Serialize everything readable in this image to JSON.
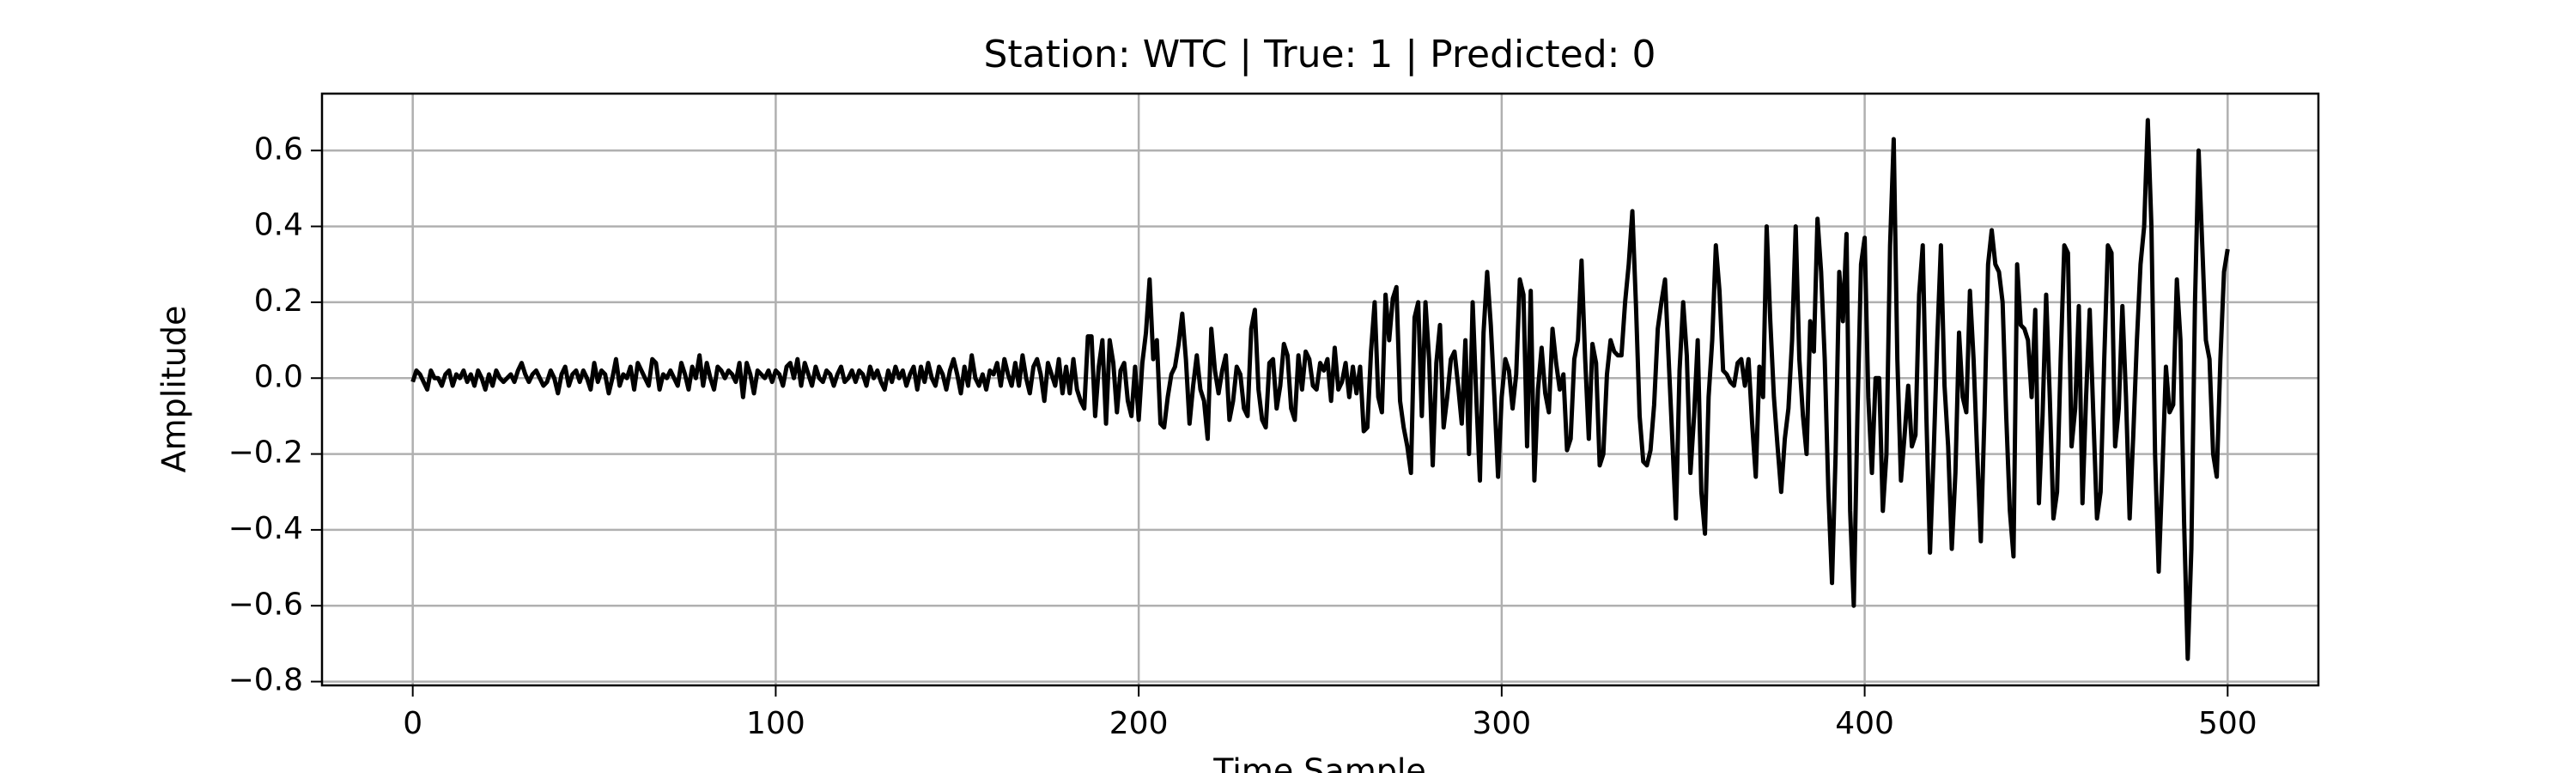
{
  "chart_data": {
    "type": "line",
    "title": "Station: WTC | True: 1 | Predicted: 0",
    "xlabel": "Time Sample",
    "ylabel": "Amplitude",
    "x": [
      0,
      1,
      2,
      3,
      4,
      5,
      6,
      7,
      8,
      9,
      10,
      11,
      12,
      13,
      14,
      15,
      16,
      17,
      18,
      19,
      20,
      21,
      22,
      23,
      24,
      25,
      26,
      27,
      28,
      29,
      30,
      31,
      32,
      33,
      34,
      35,
      36,
      37,
      38,
      39,
      40,
      41,
      42,
      43,
      44,
      45,
      46,
      47,
      48,
      49,
      50,
      51,
      52,
      53,
      54,
      55,
      56,
      57,
      58,
      59,
      60,
      61,
      62,
      63,
      64,
      65,
      66,
      67,
      68,
      69,
      70,
      71,
      72,
      73,
      74,
      75,
      76,
      77,
      78,
      79,
      80,
      81,
      82,
      83,
      84,
      85,
      86,
      87,
      88,
      89,
      90,
      91,
      92,
      93,
      94,
      95,
      96,
      97,
      98,
      99,
      100,
      101,
      102,
      103,
      104,
      105,
      106,
      107,
      108,
      109,
      110,
      111,
      112,
      113,
      114,
      115,
      116,
      117,
      118,
      119,
      120,
      121,
      122,
      123,
      124,
      125,
      126,
      127,
      128,
      129,
      130,
      131,
      132,
      133,
      134,
      135,
      136,
      137,
      138,
      139,
      140,
      141,
      142,
      143,
      144,
      145,
      146,
      147,
      148,
      149,
      150,
      151,
      152,
      153,
      154,
      155,
      156,
      157,
      158,
      159,
      160,
      161,
      162,
      163,
      164,
      165,
      166,
      167,
      168,
      169,
      170,
      171,
      172,
      173,
      174,
      175,
      176,
      177,
      178,
      179,
      180,
      181,
      182,
      183,
      184,
      185,
      186,
      187,
      188,
      189,
      190,
      191,
      192,
      193,
      194,
      195,
      196,
      197,
      198,
      199,
      200,
      201,
      202,
      203,
      204,
      205,
      206,
      207,
      208,
      209,
      210,
      211,
      212,
      213,
      214,
      215,
      216,
      217,
      218,
      219,
      220,
      221,
      222,
      223,
      224,
      225,
      226,
      227,
      228,
      229,
      230,
      231,
      232,
      233,
      234,
      235,
      236,
      237,
      238,
      239,
      240,
      241,
      242,
      243,
      244,
      245,
      246,
      247,
      248,
      249,
      250,
      251,
      252,
      253,
      254,
      255,
      256,
      257,
      258,
      259,
      260,
      261,
      262,
      263,
      264,
      265,
      266,
      267,
      268,
      269,
      270,
      271,
      272,
      273,
      274,
      275,
      276,
      277,
      278,
      279,
      280,
      281,
      282,
      283,
      284,
      285,
      286,
      287,
      288,
      289,
      290,
      291,
      292,
      293,
      294,
      295,
      296,
      297,
      298,
      299,
      300,
      301,
      302,
      303,
      304,
      305,
      306,
      307,
      308,
      309,
      310,
      311,
      312,
      313,
      314,
      315,
      316,
      317,
      318,
      319,
      320,
      321,
      322,
      323,
      324,
      325,
      326,
      327,
      328,
      329,
      330,
      331,
      332,
      333,
      334,
      335,
      336,
      337,
      338,
      339,
      340,
      341,
      342,
      343,
      344,
      345,
      346,
      347,
      348,
      349,
      350,
      351,
      352,
      353,
      354,
      355,
      356,
      357,
      358,
      359,
      360,
      361,
      362,
      363,
      364,
      365,
      366,
      367,
      368,
      369,
      370,
      371,
      372,
      373,
      374,
      375,
      376,
      377,
      378,
      379,
      380,
      381,
      382,
      383,
      384,
      385,
      386,
      387,
      388,
      389,
      390,
      391,
      392,
      393,
      394,
      395,
      396,
      397,
      398,
      399,
      400,
      401,
      402,
      403,
      404,
      405,
      406,
      407,
      408,
      409,
      410,
      411,
      412,
      413,
      414,
      415,
      416,
      417,
      418,
      419,
      420,
      421,
      422,
      423,
      424,
      425,
      426,
      427,
      428,
      429,
      430,
      431,
      432,
      433,
      434,
      435,
      436,
      437,
      438,
      439,
      440,
      441,
      442,
      443,
      444,
      445,
      446,
      447,
      448,
      449,
      450,
      451,
      452,
      453,
      454,
      455,
      456,
      457,
      458,
      459,
      460,
      461,
      462,
      463,
      464,
      465,
      466,
      467,
      468,
      469,
      470,
      471,
      472,
      473,
      474,
      475,
      476,
      477,
      478,
      479,
      480,
      481,
      482,
      483,
      484,
      485,
      486,
      487,
      488,
      489,
      490,
      491,
      492,
      493,
      494,
      495,
      496,
      497,
      498,
      499,
      500
    ],
    "series": [
      {
        "color": "#000000",
        "values": [
          -0.01,
          0.02,
          0.01,
          -0.01,
          -0.03,
          0.02,
          0,
          0,
          -0.02,
          0.01,
          0.02,
          -0.02,
          0.01,
          0,
          0.02,
          -0.01,
          0.01,
          -0.02,
          0.02,
          0,
          -0.03,
          0.01,
          -0.02,
          0.02,
          0,
          -0.01,
          0,
          0.01,
          -0.01,
          0.02,
          0.04,
          0.01,
          -0.01,
          0.01,
          0.02,
          0,
          -0.02,
          -0.01,
          0.02,
          0,
          -0.04,
          0.01,
          0.03,
          -0.02,
          0.01,
          0.02,
          -0.01,
          0.02,
          0,
          -0.03,
          0.04,
          -0.01,
          0.02,
          0.01,
          -0.04,
          0,
          0.05,
          -0.02,
          0.01,
          0,
          0.03,
          -0.03,
          0.04,
          0.02,
          0,
          -0.02,
          0.05,
          0.04,
          -0.03,
          0.01,
          0,
          0.02,
          0,
          -0.02,
          0.04,
          0.01,
          -0.03,
          0.03,
          0,
          0.06,
          -0.02,
          0.04,
          0,
          -0.03,
          0.03,
          0.02,
          0,
          0.02,
          0.01,
          -0.01,
          0.04,
          -0.05,
          0.04,
          0.01,
          -0.04,
          0.02,
          0.01,
          0,
          0.02,
          -0.01,
          0.02,
          0.01,
          -0.02,
          0.03,
          0.04,
          0,
          0.05,
          -0.02,
          0.04,
          0.01,
          -0.02,
          0.03,
          0,
          -0.01,
          0.02,
          0.01,
          -0.02,
          0.01,
          0.03,
          -0.01,
          0,
          0.02,
          -0.01,
          0.02,
          0.01,
          -0.02,
          0.03,
          0,
          0.02,
          -0.01,
          -0.03,
          0.02,
          -0.01,
          0.03,
          0,
          0.02,
          -0.02,
          0.01,
          0.03,
          -0.03,
          0.03,
          -0.01,
          0.04,
          0,
          -0.02,
          0.03,
          0.01,
          -0.03,
          0.02,
          0.05,
          0.01,
          -0.04,
          0.03,
          -0.02,
          0.06,
          0,
          -0.02,
          0.01,
          -0.03,
          0.02,
          0.01,
          0.04,
          -0.02,
          0.05,
          0.01,
          -0.02,
          0.04,
          -0.02,
          0.06,
          0,
          -0.04,
          0.03,
          0.05,
          0.01,
          -0.06,
          0.04,
          0.01,
          -0.02,
          0.05,
          -0.04,
          0.03,
          -0.04,
          0.05,
          -0.03,
          -0.06,
          -0.08,
          0.11,
          0.11,
          -0.1,
          0.03,
          0.1,
          -0.12,
          0.1,
          0.04,
          -0.09,
          0.02,
          0.04,
          -0.06,
          -0.1,
          0.03,
          -0.11,
          0.04,
          0.12,
          0.26,
          0.05,
          0.1,
          -0.12,
          -0.13,
          -0.05,
          0.01,
          0.03,
          0.09,
          0.17,
          0.05,
          -0.12,
          -0.02,
          0.06,
          -0.03,
          -0.06,
          -0.16,
          0.13,
          0.02,
          -0.04,
          0.02,
          0.06,
          -0.11,
          -0.06,
          0.03,
          0.01,
          -0.08,
          -0.1,
          0.13,
          0.18,
          -0.03,
          -0.11,
          -0.13,
          0.04,
          0.05,
          -0.08,
          -0.02,
          0.09,
          0.06,
          -0.08,
          -0.11,
          0.06,
          -0.03,
          0.07,
          0.05,
          -0.02,
          -0.03,
          0.04,
          0.02,
          0.05,
          -0.06,
          0.08,
          -0.03,
          -0.01,
          0.04,
          -0.05,
          0.03,
          -0.04,
          0.03,
          -0.14,
          -0.13,
          0.07,
          0.2,
          -0.05,
          -0.09,
          0.22,
          0.1,
          0.21,
          0.24,
          -0.06,
          -0.13,
          -0.18,
          -0.25,
          0.16,
          0.2,
          -0.1,
          0.2,
          0.05,
          -0.23,
          0.04,
          0.14,
          -0.13,
          -0.05,
          0.05,
          0.07,
          -0.02,
          -0.12,
          0.1,
          -0.2,
          0.2,
          -0.05,
          -0.27,
          0.12,
          0.28,
          0.14,
          -0.05,
          -0.26,
          -0.05,
          0.05,
          0.02,
          -0.08,
          0.01,
          0.26,
          0.22,
          -0.18,
          0.23,
          -0.27,
          -0.03,
          0.08,
          -0.04,
          -0.09,
          0.13,
          0.04,
          -0.03,
          0.01,
          -0.19,
          -0.16,
          0.05,
          0.1,
          0.31,
          0.05,
          -0.16,
          0.09,
          0.04,
          -0.23,
          -0.2,
          0.01,
          0.1,
          0.07,
          0.06,
          0.06,
          0.2,
          0.3,
          0.44,
          0.19,
          -0.1,
          -0.22,
          -0.23,
          -0.19,
          -0.07,
          0.13,
          0.2,
          0.26,
          0.05,
          -0.16,
          -0.37,
          0.02,
          0.2,
          0.06,
          -0.25,
          -0.1,
          0.1,
          -0.3,
          -0.41,
          -0.05,
          0.1,
          0.35,
          0.23,
          0.02,
          0.01,
          -0.01,
          -0.02,
          0.04,
          0.05,
          -0.02,
          0.05,
          -0.12,
          -0.26,
          0.03,
          -0.05,
          0.4,
          0.15,
          -0.05,
          -0.18,
          -0.3,
          -0.16,
          -0.08,
          0.1,
          0.4,
          0.05,
          -0.1,
          -0.2,
          0.15,
          0.07,
          0.42,
          0.28,
          0.05,
          -0.3,
          -0.54,
          -0.2,
          0.28,
          0.15,
          0.38,
          -0.35,
          -0.6,
          -0.1,
          0.3,
          0.37,
          -0.05,
          -0.25,
          0,
          0,
          -0.35,
          -0.2,
          0.35,
          0.63,
          0.05,
          -0.27,
          -0.15,
          -0.02,
          -0.18,
          -0.15,
          0.22,
          0.35,
          -0.1,
          -0.46,
          -0.2,
          0.1,
          0.35,
          -0.02,
          -0.18,
          -0.45,
          -0.25,
          0.12,
          -0.05,
          -0.09,
          0.23,
          0.05,
          -0.2,
          -0.43,
          -0.1,
          0.3,
          0.39,
          0.3,
          0.28,
          0.2,
          -0.1,
          -0.35,
          -0.47,
          0.3,
          0.14,
          0.13,
          0.1,
          -0.05,
          0.18,
          -0.33,
          -0.1,
          0.22,
          -0.05,
          -0.37,
          -0.3,
          0.05,
          0.35,
          0.33,
          -0.18,
          -0.08,
          0.19,
          -0.33,
          -0.05,
          0.18,
          -0.1,
          -0.37,
          -0.3,
          0.05,
          0.35,
          0.33,
          -0.18,
          -0.08,
          0.19,
          -0.05,
          -0.37,
          -0.15,
          0.1,
          0.3,
          0.4,
          0.68,
          0.4,
          -0.2,
          -0.51,
          -0.25,
          0.03,
          -0.09,
          -0.07,
          0.26,
          0.1,
          -0.38,
          -0.74,
          -0.45,
          0.2,
          0.6,
          0.35,
          0.1,
          0.05,
          -0.2,
          -0.26,
          0.05,
          0.28,
          0.34
        ]
      }
    ],
    "xlim": [
      -25,
      525
    ],
    "ylim": [
      -0.81,
      0.75
    ],
    "xticks": [
      0,
      100,
      200,
      300,
      400,
      500
    ],
    "yticks": [
      {
        "value": -0.8,
        "label": "−0.8"
      },
      {
        "value": -0.6,
        "label": "−0.6"
      },
      {
        "value": -0.4,
        "label": "−0.4"
      },
      {
        "value": -0.2,
        "label": "−0.2"
      },
      {
        "value": 0,
        "label": "0.0"
      },
      0.2,
      0.4,
      0.6
    ],
    "grid": true
  }
}
